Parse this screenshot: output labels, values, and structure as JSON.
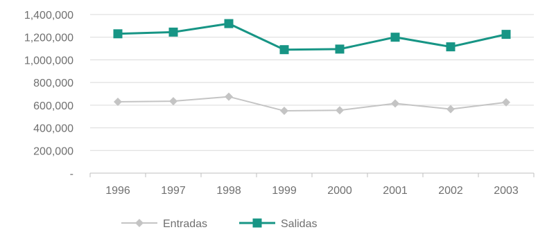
{
  "chart_data": {
    "type": "line",
    "title": "",
    "xlabel": "",
    "ylabel": "",
    "categories": [
      "1996",
      "1997",
      "1998",
      "1999",
      "2000",
      "2001",
      "2002",
      "2003"
    ],
    "ylim": [
      0,
      1400000
    ],
    "y_ticks": [
      {
        "value": 0,
        "label": "-"
      },
      {
        "value": 200000,
        "label": "200,000"
      },
      {
        "value": 400000,
        "label": "400,000"
      },
      {
        "value": 600000,
        "label": "600,000"
      },
      {
        "value": 800000,
        "label": "800,000"
      },
      {
        "value": 1000000,
        "label": "1,000,000"
      },
      {
        "value": 1200000,
        "label": "1,200,000"
      },
      {
        "value": 1400000,
        "label": "1,400,000"
      }
    ],
    "grid": true,
    "legend_position": "bottom-left",
    "series": [
      {
        "name": "Entradas",
        "color": "#c4c4c4",
        "marker": "diamond",
        "values": [
          630000,
          635000,
          675000,
          550000,
          555000,
          615000,
          565000,
          625000
        ]
      },
      {
        "name": "Salidas",
        "color": "#179585",
        "marker": "square",
        "values": [
          1230000,
          1245000,
          1320000,
          1090000,
          1095000,
          1200000,
          1115000,
          1225000
        ]
      }
    ]
  }
}
